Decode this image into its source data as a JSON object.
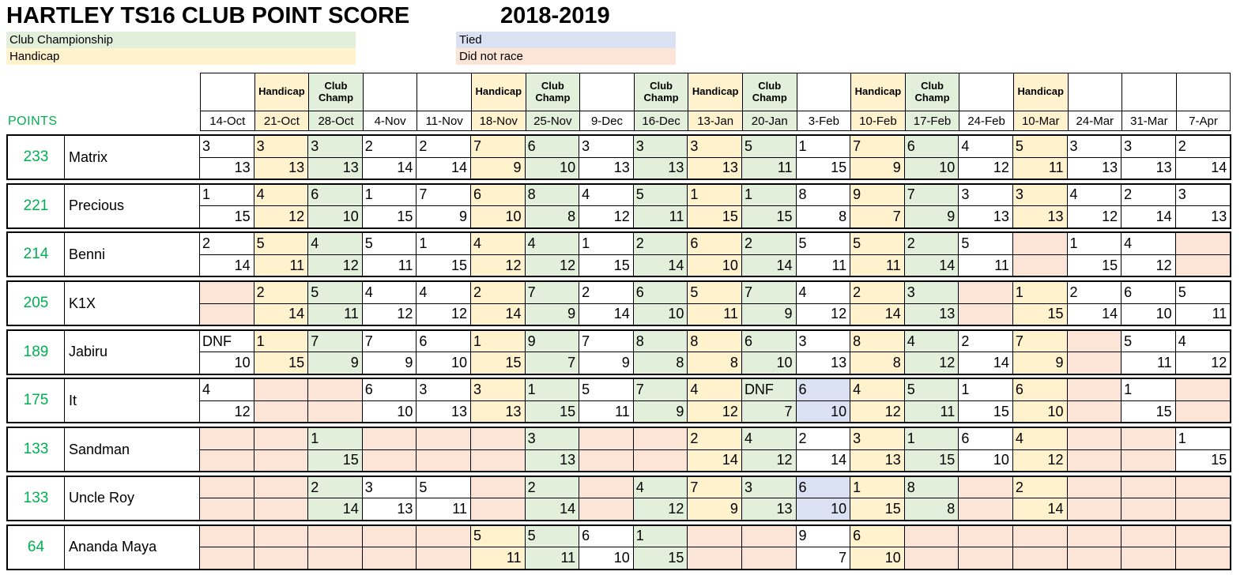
{
  "title": "HARTLEY TS16 CLUB POINT SCORE",
  "season": "2018-2019",
  "points_label": "POINTS",
  "legend": {
    "club_championship": "Club Championship",
    "handicap": "Handicap",
    "tied": "Tied",
    "did_not_race": "Did not race"
  },
  "colors": {
    "club_champ": "#E2EFDA",
    "handicap": "#FFF2CC",
    "tied": "#D9E1F2",
    "did_not_race": "#FCE4D6",
    "white": "#FFFFFF",
    "points_text": "#00B050"
  },
  "bg_key": {
    "w": "white",
    "h": "handicap",
    "c": "club_champ",
    "t": "tied",
    "d": "did_not_race"
  },
  "columns": [
    {
      "date": "14-Oct",
      "type": "",
      "bg": "w"
    },
    {
      "date": "21-Oct",
      "type": "Handicap",
      "bg": "h"
    },
    {
      "date": "28-Oct",
      "type": "Club Champ",
      "bg": "c"
    },
    {
      "date": "4-Nov",
      "type": "",
      "bg": "w"
    },
    {
      "date": "11-Nov",
      "type": "",
      "bg": "w"
    },
    {
      "date": "18-Nov",
      "type": "Handicap",
      "bg": "h"
    },
    {
      "date": "25-Nov",
      "type": "Club Champ",
      "bg": "c"
    },
    {
      "date": "9-Dec",
      "type": "",
      "bg": "w"
    },
    {
      "date": "16-Dec",
      "type": "Club Champ",
      "bg": "c"
    },
    {
      "date": "13-Jan",
      "type": "Handicap",
      "bg": "h"
    },
    {
      "date": "20-Jan",
      "type": "Club Champ",
      "bg": "c"
    },
    {
      "date": "3-Feb",
      "type": "",
      "bg": "w"
    },
    {
      "date": "10-Feb",
      "type": "Handicap",
      "bg": "h"
    },
    {
      "date": "17-Feb",
      "type": "Club Champ",
      "bg": "c"
    },
    {
      "date": "24-Feb",
      "type": "",
      "bg": "w"
    },
    {
      "date": "10-Mar",
      "type": "Handicap",
      "bg": "h"
    },
    {
      "date": "24-Mar",
      "type": "",
      "bg": "w"
    },
    {
      "date": "31-Mar",
      "type": "",
      "bg": "w"
    },
    {
      "date": "7-Apr",
      "type": "",
      "bg": "w"
    }
  ],
  "boats": [
    {
      "points": "233",
      "name": "Matrix",
      "results": [
        [
          "3",
          "13",
          "w"
        ],
        [
          "3",
          "13",
          "h"
        ],
        [
          "3",
          "13",
          "c"
        ],
        [
          "2",
          "14",
          "w"
        ],
        [
          "2",
          "14",
          "w"
        ],
        [
          "7",
          "9",
          "h"
        ],
        [
          "6",
          "10",
          "c"
        ],
        [
          "3",
          "13",
          "w"
        ],
        [
          "3",
          "13",
          "c"
        ],
        [
          "3",
          "13",
          "h"
        ],
        [
          "5",
          "11",
          "c"
        ],
        [
          "1",
          "15",
          "w"
        ],
        [
          "7",
          "9",
          "h"
        ],
        [
          "6",
          "10",
          "c"
        ],
        [
          "4",
          "12",
          "w"
        ],
        [
          "5",
          "11",
          "h"
        ],
        [
          "3",
          "13",
          "w"
        ],
        [
          "3",
          "13",
          "w"
        ],
        [
          "2",
          "14",
          "w"
        ]
      ]
    },
    {
      "points": "221",
      "name": "Precious",
      "results": [
        [
          "1",
          "15",
          "w"
        ],
        [
          "4",
          "12",
          "h"
        ],
        [
          "6",
          "10",
          "c"
        ],
        [
          "1",
          "15",
          "w"
        ],
        [
          "7",
          "9",
          "w"
        ],
        [
          "6",
          "10",
          "h"
        ],
        [
          "8",
          "8",
          "c"
        ],
        [
          "4",
          "12",
          "w"
        ],
        [
          "5",
          "11",
          "c"
        ],
        [
          "1",
          "15",
          "h"
        ],
        [
          "1",
          "15",
          "c"
        ],
        [
          "8",
          "8",
          "w"
        ],
        [
          "9",
          "7",
          "h"
        ],
        [
          "7",
          "9",
          "c"
        ],
        [
          "3",
          "13",
          "w"
        ],
        [
          "3",
          "13",
          "h"
        ],
        [
          "4",
          "12",
          "w"
        ],
        [
          "2",
          "14",
          "w"
        ],
        [
          "3",
          "13",
          "w"
        ]
      ]
    },
    {
      "points": "214",
      "name": "Benni",
      "results": [
        [
          "2",
          "14",
          "w"
        ],
        [
          "5",
          "11",
          "h"
        ],
        [
          "4",
          "12",
          "c"
        ],
        [
          "5",
          "11",
          "w"
        ],
        [
          "1",
          "15",
          "w"
        ],
        [
          "4",
          "12",
          "h"
        ],
        [
          "4",
          "12",
          "c"
        ],
        [
          "1",
          "15",
          "w"
        ],
        [
          "2",
          "14",
          "c"
        ],
        [
          "6",
          "10",
          "h"
        ],
        [
          "2",
          "14",
          "c"
        ],
        [
          "5",
          "11",
          "w"
        ],
        [
          "5",
          "11",
          "h"
        ],
        [
          "2",
          "14",
          "c"
        ],
        [
          "5",
          "11",
          "w"
        ],
        [
          "",
          "",
          "d"
        ],
        [
          "1",
          "15",
          "w"
        ],
        [
          "4",
          "12",
          "w"
        ],
        [
          "",
          "",
          "d"
        ]
      ]
    },
    {
      "points": "205",
      "name": "K1X",
      "results": [
        [
          "",
          "",
          "d"
        ],
        [
          "2",
          "14",
          "h"
        ],
        [
          "5",
          "11",
          "c"
        ],
        [
          "4",
          "12",
          "w"
        ],
        [
          "4",
          "12",
          "w"
        ],
        [
          "2",
          "14",
          "h"
        ],
        [
          "7",
          "9",
          "c"
        ],
        [
          "2",
          "14",
          "w"
        ],
        [
          "6",
          "10",
          "c"
        ],
        [
          "5",
          "11",
          "h"
        ],
        [
          "7",
          "9",
          "c"
        ],
        [
          "4",
          "12",
          "w"
        ],
        [
          "2",
          "14",
          "h"
        ],
        [
          "3",
          "13",
          "c"
        ],
        [
          "",
          "",
          "d"
        ],
        [
          "1",
          "15",
          "h"
        ],
        [
          "2",
          "14",
          "w"
        ],
        [
          "6",
          "10",
          "w"
        ],
        [
          "5",
          "11",
          "w"
        ]
      ]
    },
    {
      "points": "189",
      "name": "Jabiru",
      "results": [
        [
          "DNF",
          "10",
          "w"
        ],
        [
          "1",
          "15",
          "h"
        ],
        [
          "7",
          "9",
          "c"
        ],
        [
          "7",
          "9",
          "w"
        ],
        [
          "6",
          "10",
          "w"
        ],
        [
          "1",
          "15",
          "h"
        ],
        [
          "9",
          "7",
          "c"
        ],
        [
          "7",
          "9",
          "w"
        ],
        [
          "8",
          "8",
          "c"
        ],
        [
          "8",
          "8",
          "h"
        ],
        [
          "6",
          "10",
          "c"
        ],
        [
          "3",
          "13",
          "w"
        ],
        [
          "8",
          "8",
          "h"
        ],
        [
          "4",
          "12",
          "c"
        ],
        [
          "2",
          "14",
          "w"
        ],
        [
          "7",
          "9",
          "h"
        ],
        [
          "",
          "",
          "d"
        ],
        [
          "5",
          "11",
          "w"
        ],
        [
          "4",
          "12",
          "w"
        ]
      ]
    },
    {
      "points": "175",
      "name": "It",
      "results": [
        [
          "4",
          "12",
          "w"
        ],
        [
          "",
          "",
          "d"
        ],
        [
          "",
          "",
          "d"
        ],
        [
          "6",
          "10",
          "w"
        ],
        [
          "3",
          "13",
          "w"
        ],
        [
          "3",
          "13",
          "h"
        ],
        [
          "1",
          "15",
          "c"
        ],
        [
          "5",
          "11",
          "w"
        ],
        [
          "7",
          "9",
          "c"
        ],
        [
          "4",
          "12",
          "h"
        ],
        [
          "DNF",
          "7",
          "c"
        ],
        [
          "6",
          "10",
          "t"
        ],
        [
          "4",
          "12",
          "h"
        ],
        [
          "5",
          "11",
          "c"
        ],
        [
          "1",
          "15",
          "w"
        ],
        [
          "6",
          "10",
          "h"
        ],
        [
          "",
          "",
          "d"
        ],
        [
          "1",
          "15",
          "w"
        ],
        [
          "",
          "",
          "d"
        ]
      ]
    },
    {
      "points": "133",
      "name": "Sandman",
      "results": [
        [
          "",
          "",
          "d"
        ],
        [
          "",
          "",
          "d"
        ],
        [
          "1",
          "15",
          "c"
        ],
        [
          "",
          "",
          "d"
        ],
        [
          "",
          "",
          "d"
        ],
        [
          "",
          "",
          "d"
        ],
        [
          "3",
          "13",
          "c"
        ],
        [
          "",
          "",
          "d"
        ],
        [
          "",
          "",
          "d"
        ],
        [
          "2",
          "14",
          "h"
        ],
        [
          "4",
          "12",
          "c"
        ],
        [
          "2",
          "14",
          "w"
        ],
        [
          "3",
          "13",
          "h"
        ],
        [
          "1",
          "15",
          "c"
        ],
        [
          "6",
          "10",
          "w"
        ],
        [
          "4",
          "12",
          "h"
        ],
        [
          "",
          "",
          "d"
        ],
        [
          "",
          "",
          "d"
        ],
        [
          "1",
          "15",
          "w"
        ]
      ]
    },
    {
      "points": "133",
      "name": "Uncle Roy",
      "results": [
        [
          "",
          "",
          "d"
        ],
        [
          "",
          "",
          "d"
        ],
        [
          "2",
          "14",
          "c"
        ],
        [
          "3",
          "13",
          "w"
        ],
        [
          "5",
          "11",
          "w"
        ],
        [
          "",
          "",
          "d"
        ],
        [
          "2",
          "14",
          "c"
        ],
        [
          "",
          "",
          "d"
        ],
        [
          "4",
          "12",
          "c"
        ],
        [
          "7",
          "9",
          "h"
        ],
        [
          "3",
          "13",
          "c"
        ],
        [
          "6",
          "10",
          "t"
        ],
        [
          "1",
          "15",
          "h"
        ],
        [
          "8",
          "8",
          "c"
        ],
        [
          "",
          "",
          "d"
        ],
        [
          "2",
          "14",
          "h"
        ],
        [
          "",
          "",
          "d"
        ],
        [
          "",
          "",
          "d"
        ],
        [
          "",
          "",
          "d"
        ]
      ]
    },
    {
      "points": "64",
      "name": "Ananda Maya",
      "results": [
        [
          "",
          "",
          "d"
        ],
        [
          "",
          "",
          "d"
        ],
        [
          "",
          "",
          "d"
        ],
        [
          "",
          "",
          "d"
        ],
        [
          "",
          "",
          "d"
        ],
        [
          "5",
          "11",
          "h"
        ],
        [
          "5",
          "11",
          "c"
        ],
        [
          "6",
          "10",
          "w"
        ],
        [
          "1",
          "15",
          "c"
        ],
        [
          "",
          "",
          "d"
        ],
        [
          "",
          "",
          "d"
        ],
        [
          "9",
          "7",
          "w"
        ],
        [
          "6",
          "10",
          "h"
        ],
        [
          "",
          "",
          "d"
        ],
        [
          "",
          "",
          "d"
        ],
        [
          "",
          "",
          "d"
        ],
        [
          "",
          "",
          "d"
        ],
        [
          "",
          "",
          "d"
        ],
        [
          "",
          "",
          "d"
        ]
      ]
    }
  ]
}
